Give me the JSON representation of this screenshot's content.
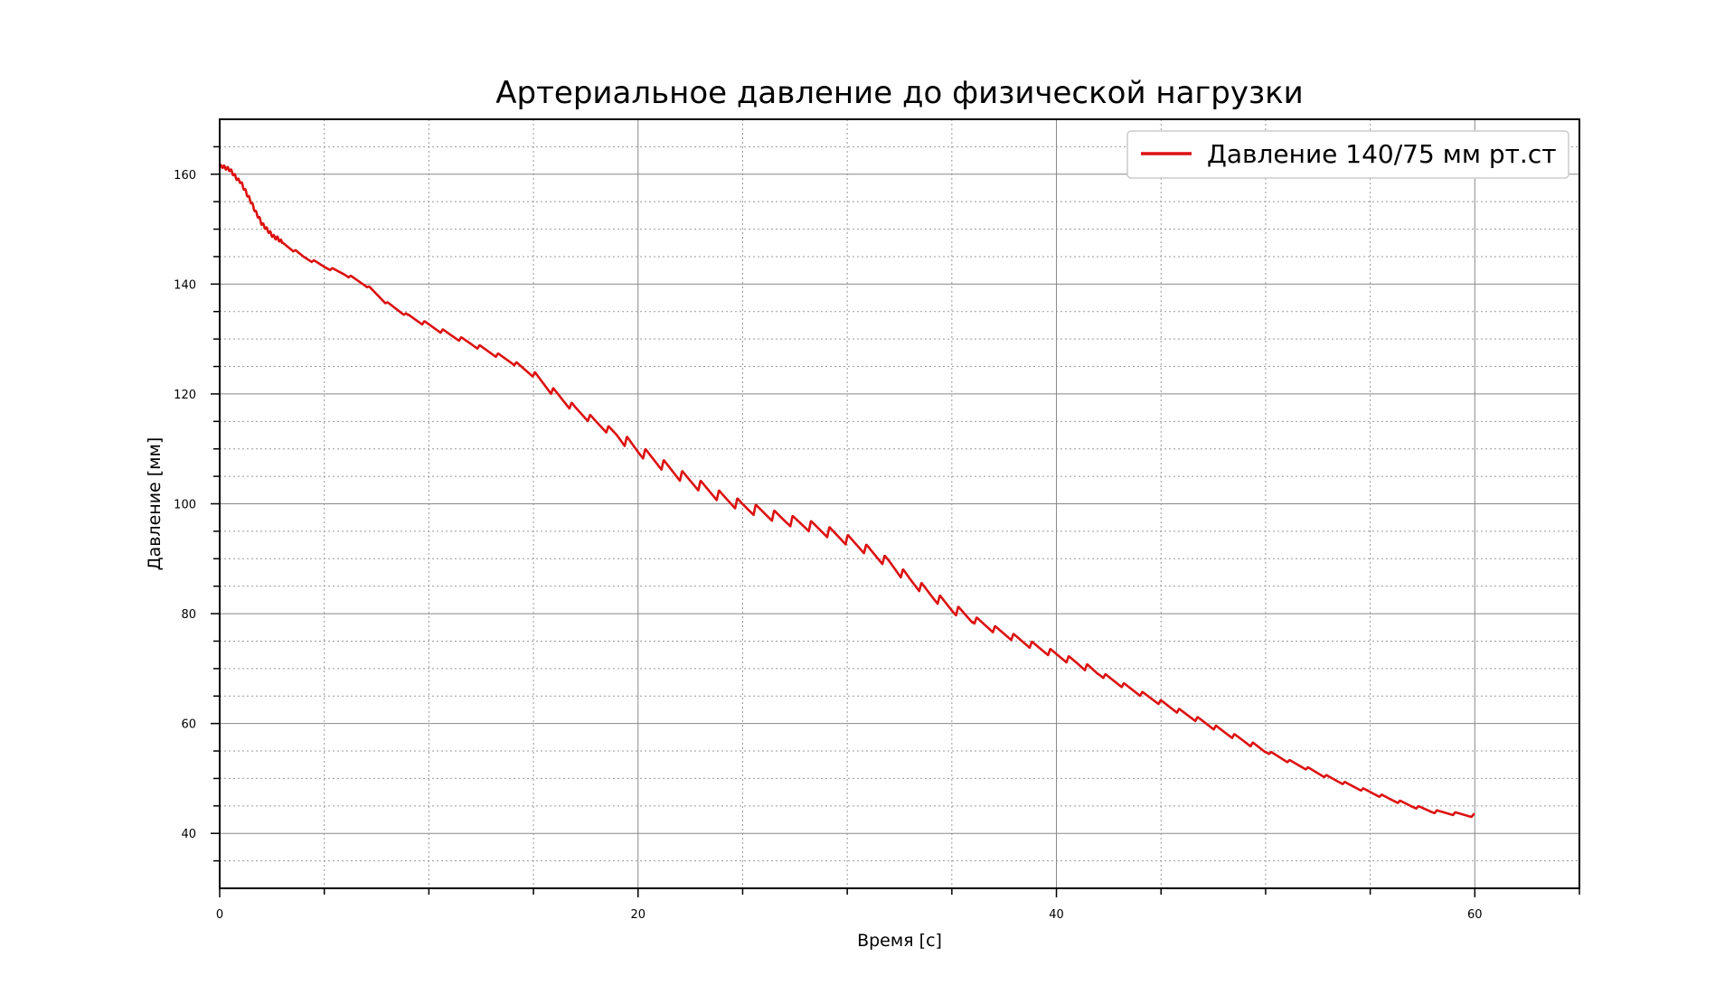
{
  "chart_data": {
    "type": "line",
    "title": "Артериальное давление до физической нагрузки",
    "xlabel": "Время [с]",
    "ylabel": "Давление [мм]",
    "xlim": [
      0,
      65
    ],
    "ylim": [
      30,
      170
    ],
    "xticks_major": [
      0,
      20,
      40,
      60
    ],
    "xticks_minor": [
      5,
      10,
      15,
      25,
      30,
      35,
      45,
      50,
      55,
      65
    ],
    "yticks_major": [
      40,
      60,
      80,
      100,
      120,
      140,
      160
    ],
    "yticks_minor": [
      35,
      45,
      50,
      55,
      65,
      70,
      75,
      85,
      90,
      95,
      105,
      110,
      115,
      125,
      130,
      135,
      145,
      150,
      155,
      165
    ],
    "grid": true,
    "legend_position": "top-right",
    "series": [
      {
        "name": "Давление 140/75 мм рт.ст",
        "color": "#dd1111",
        "x": [
          0,
          0.5,
          1,
          1.5,
          2,
          2.5,
          3,
          4,
          5,
          6,
          7,
          8,
          9,
          10,
          11,
          12,
          13,
          14,
          15,
          16,
          17,
          18,
          19,
          20,
          21,
          22,
          23,
          24,
          25,
          26,
          27,
          28,
          29,
          30,
          31,
          32,
          33,
          34,
          35,
          36,
          37,
          38,
          39,
          40,
          41,
          42,
          43,
          44,
          45,
          46,
          47,
          48,
          49,
          50,
          51,
          52,
          53,
          54,
          55,
          56,
          57,
          58,
          59,
          60
        ],
        "y": [
          161.5,
          160.8,
          158.5,
          155,
          151,
          149,
          147.5,
          145,
          143.2,
          141.8,
          139.8,
          136.5,
          134.2,
          132.5,
          130.8,
          129.2,
          127.5,
          125.8,
          123.5,
          120.2,
          117.2,
          114.8,
          112.5,
          109.8,
          107.5,
          105.2,
          103.2,
          101.2,
          99.6,
          98.4,
          97.2,
          96.2,
          95.0,
          93.5,
          91.5,
          89.2,
          86.2,
          83.5,
          81.0,
          79.0,
          77.2,
          75.6,
          74.0,
          72.5,
          71.0,
          69.2,
          67.3,
          65.5,
          63.8,
          62.0,
          60.3,
          58.5,
          56.8,
          55.0,
          53.3,
          51.8,
          50.2,
          48.8,
          47.5,
          46.2,
          45.0,
          44.0,
          43.6,
          43.2
        ]
      }
    ]
  }
}
